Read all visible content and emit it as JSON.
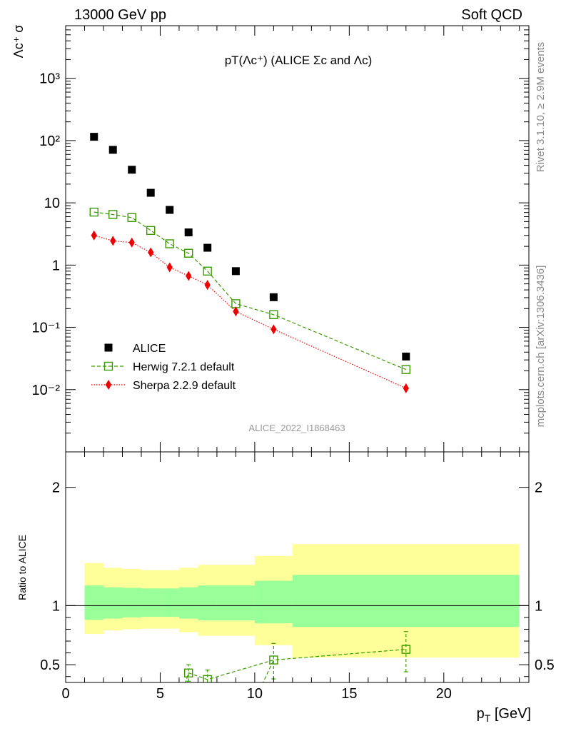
{
  "header": {
    "left": "13000 GeV pp",
    "right": "Soft QCD"
  },
  "side": {
    "rivet": "Rivet 3.1.10, ≥ 2.9M events",
    "mcplots": "mcplots.cern.ch [arXiv:1306.3436]"
  },
  "chart_data": [
    {
      "type": "scatter",
      "panel": "main",
      "title": "pT(Λc⁺) (ALICE Σc and Λc)",
      "watermark": "ALICE_2022_I1868463",
      "ylabel": "Λc⁺ σ",
      "yscale": "log",
      "ylim": [
        0.001,
        7000
      ],
      "xlim": [
        0,
        24.5
      ],
      "y_tick_labels": [
        "10⁻²",
        "10⁻¹",
        "1",
        "10",
        "10²",
        "10³"
      ],
      "legend": {
        "placement": "bottom-left",
        "entries": [
          "ALICE",
          "Herwig 7.2.1 default",
          "Sherpa 2.2.9 default"
        ]
      },
      "series": [
        {
          "name": "ALICE",
          "color": "#000000",
          "marker": "square-filled",
          "x": [
            1.5,
            2.5,
            3.5,
            4.5,
            5.5,
            6.5,
            7.5,
            9.0,
            11.0,
            18.0
          ],
          "y": [
            115,
            71,
            34,
            14.5,
            7.7,
            3.35,
            1.9,
            0.8,
            0.305,
            0.034
          ]
        },
        {
          "name": "Herwig 7.2.1 default",
          "color": "#3a9a00",
          "marker": "square-open",
          "line": "dashed",
          "x": [
            1.5,
            2.5,
            3.5,
            4.5,
            5.5,
            6.5,
            7.5,
            9.0,
            11.0,
            18.0
          ],
          "y": [
            7.1,
            6.5,
            5.8,
            3.6,
            2.2,
            1.55,
            0.8,
            0.24,
            0.16,
            0.021
          ]
        },
        {
          "name": "Sherpa 2.2.9 default",
          "color": "#ee0000",
          "marker": "diamond-filled",
          "line": "dotted",
          "x": [
            1.5,
            2.5,
            3.5,
            4.5,
            5.5,
            6.5,
            7.5,
            9.0,
            11.0,
            18.0
          ],
          "y": [
            3.0,
            2.45,
            2.3,
            1.6,
            0.92,
            0.67,
            0.48,
            0.18,
            0.093,
            0.0105
          ]
        }
      ]
    },
    {
      "type": "scatter",
      "panel": "ratio",
      "ylabel": "Ratio to ALICE",
      "xlabel": "p_T [GeV]",
      "xlim": [
        0,
        24.5
      ],
      "ylim": [
        0.35,
        2.3
      ],
      "x_tick_labels": [
        "0",
        "5",
        "10",
        "15",
        "20"
      ],
      "y_tick_labels": [
        "0.5",
        "1",
        "2"
      ],
      "bands": {
        "edges": [
          1,
          2,
          3,
          4,
          5,
          6,
          7,
          8,
          10,
          12,
          24
        ],
        "inner_low": [
          0.88,
          0.89,
          0.9,
          0.905,
          0.905,
          0.89,
          0.875,
          0.875,
          0.85,
          0.82
        ],
        "inner_high": [
          1.17,
          1.155,
          1.15,
          1.145,
          1.145,
          1.155,
          1.17,
          1.17,
          1.21,
          1.26
        ],
        "outer_low": [
          0.76,
          0.79,
          0.8,
          0.805,
          0.805,
          0.775,
          0.745,
          0.745,
          0.665,
          0.56
        ],
        "outer_high": [
          1.36,
          1.32,
          1.31,
          1.3,
          1.3,
          1.32,
          1.345,
          1.345,
          1.42,
          1.52
        ],
        "inner_color": "#99ff99",
        "outer_color": "#ffff99"
      },
      "series": [
        {
          "name": "Herwig 7.2.1 default",
          "color": "#3a9a00",
          "x": [
            6.5,
            7.5,
            11.0,
            18.0
          ],
          "y": [
            0.43,
            0.375,
            0.54,
            0.63
          ],
          "err_low": [
            0.36,
            0.31,
            0.38,
            0.44
          ],
          "err_high": [
            0.5,
            0.455,
            0.68,
            0.78
          ]
        }
      ]
    }
  ]
}
